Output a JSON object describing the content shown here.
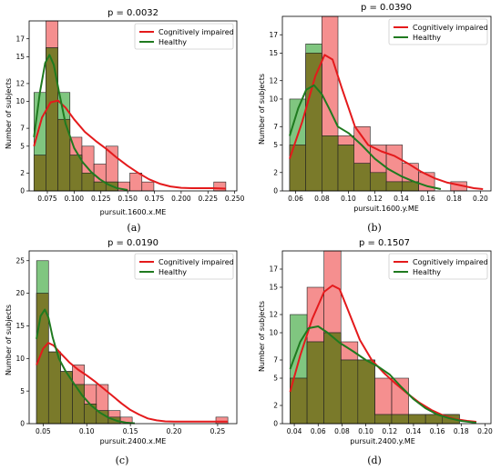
{
  "colors": {
    "impaired_fill": "#ef4444",
    "healthy_fill": "#2ca02c",
    "overlap_fill": "#7a7a2a",
    "impaired_line": "#e41a1c",
    "healthy_line": "#1f7a1f"
  },
  "legend": {
    "impaired": "Cognitively impaired",
    "healthy": "Healthy"
  },
  "chart_data": [
    {
      "type": "histogram",
      "caption": "(a)",
      "title": "p = 0.0032",
      "xlabel": "pursuit.1600.x.ME",
      "ylabel": "Number of subjects",
      "xlim": [
        0.058,
        0.252
      ],
      "ylim": [
        0,
        19
      ],
      "xticks": [
        "0.075",
        "0.100",
        "0.125",
        "0.150",
        "0.175",
        "0.200",
        "0.225",
        "0.250"
      ],
      "xtick_values": [
        0.075,
        0.1,
        0.125,
        0.15,
        0.175,
        0.2,
        0.225,
        0.25
      ],
      "yticks": [
        "0",
        "2",
        "5",
        "7",
        "10",
        "12",
        "15",
        "17"
      ],
      "ytick_values": [
        0,
        2,
        5,
        7,
        10,
        12,
        15,
        17
      ],
      "bin_edges": [
        0.0625,
        0.0737,
        0.0849,
        0.0961,
        0.1073,
        0.1185,
        0.1297,
        0.1409,
        0.1521,
        0.1633,
        0.1745,
        0.1857,
        0.1969,
        0.2081,
        0.2193,
        0.2305,
        0.2417
      ],
      "series": [
        {
          "name": "Cognitively impaired",
          "counts": [
            4,
            19,
            8,
            6,
            5,
            3,
            5,
            1,
            2,
            1,
            0,
            0,
            0,
            0,
            0,
            1
          ],
          "kde_x": [
            0.0625,
            0.07,
            0.078,
            0.085,
            0.092,
            0.1,
            0.11,
            0.12,
            0.13,
            0.14,
            0.15,
            0.16,
            0.17,
            0.18,
            0.19,
            0.2,
            0.21,
            0.22,
            0.23,
            0.2417
          ],
          "kde_y": [
            5.0,
            8.2,
            9.9,
            10.1,
            9.3,
            8.0,
            6.6,
            5.6,
            4.7,
            3.7,
            2.8,
            2.0,
            1.3,
            0.8,
            0.5,
            0.35,
            0.3,
            0.3,
            0.3,
            0.25
          ]
        },
        {
          "name": "Healthy",
          "counts": [
            11,
            16,
            11,
            4,
            2,
            1,
            1,
            0,
            0,
            0,
            0,
            0,
            0,
            0,
            0,
            0
          ],
          "kde_x": [
            0.0625,
            0.068,
            0.073,
            0.077,
            0.081,
            0.086,
            0.092,
            0.1,
            0.108,
            0.116,
            0.124,
            0.132,
            0.14,
            0.15
          ],
          "kde_y": [
            6.0,
            11.0,
            14.3,
            15.2,
            14.1,
            11.0,
            7.5,
            4.8,
            3.2,
            2.1,
            1.3,
            0.7,
            0.3,
            0.1
          ]
        }
      ]
    },
    {
      "type": "histogram",
      "caption": "(b)",
      "title": "p = 0.0390",
      "xlabel": "pursuit.1600.y.ME",
      "ylabel": "Number of subjects",
      "xlim": [
        0.05,
        0.208
      ],
      "ylim": [
        0,
        19
      ],
      "xticks": [
        "0.06",
        "0.08",
        "0.10",
        "0.12",
        "0.14",
        "0.16",
        "0.18",
        "0.20"
      ],
      "xtick_values": [
        0.06,
        0.08,
        0.1,
        0.12,
        0.14,
        0.16,
        0.18,
        0.2
      ],
      "yticks": [
        "0",
        "2",
        "5",
        "7",
        "10",
        "12",
        "15",
        "17"
      ],
      "ytick_values": [
        0,
        2,
        5,
        7,
        10,
        12,
        15,
        17
      ],
      "bin_edges": [
        0.0555,
        0.0677,
        0.0799,
        0.0921,
        0.1043,
        0.1165,
        0.1287,
        0.1409,
        0.1531,
        0.1653,
        0.1775,
        0.1897,
        0.2019
      ],
      "series": [
        {
          "name": "Cognitively impaired",
          "counts": [
            5,
            15,
            19,
            6,
            7,
            5,
            5,
            3,
            2,
            0,
            1,
            0
          ],
          "kde_x": [
            0.0555,
            0.065,
            0.075,
            0.082,
            0.088,
            0.095,
            0.105,
            0.115,
            0.125,
            0.135,
            0.145,
            0.155,
            0.165,
            0.175,
            0.185,
            0.195,
            0.2019
          ],
          "kde_y": [
            3.5,
            7.5,
            12.5,
            14.8,
            14.3,
            11.2,
            7.0,
            5.0,
            4.3,
            3.8,
            3.0,
            2.1,
            1.4,
            0.9,
            0.6,
            0.3,
            0.2
          ]
        },
        {
          "name": "Healthy",
          "counts": [
            10,
            16,
            6,
            5,
            3,
            2,
            1,
            1,
            0,
            0,
            0,
            0
          ],
          "kde_x": [
            0.0555,
            0.062,
            0.068,
            0.074,
            0.08,
            0.086,
            0.092,
            0.1,
            0.11,
            0.12,
            0.13,
            0.14,
            0.15,
            0.16,
            0.17
          ],
          "kde_y": [
            6.0,
            9.0,
            11.0,
            11.5,
            10.5,
            8.8,
            7.0,
            6.3,
            5.0,
            3.5,
            2.4,
            1.6,
            1.0,
            0.5,
            0.2
          ]
        }
      ]
    },
    {
      "type": "histogram",
      "caption": "(c)",
      "title": "p = 0.0190",
      "xlabel": "pursuit.2400.x.ME",
      "ylabel": "Number of subjects",
      "xlim": [
        0.034,
        0.272
      ],
      "ylim": [
        0,
        26.5
      ],
      "xticks": [
        "0.05",
        "0.10",
        "0.15",
        "0.20",
        "0.25"
      ],
      "xtick_values": [
        0.05,
        0.1,
        0.15,
        0.2,
        0.25
      ],
      "yticks": [
        "0",
        "5",
        "10",
        "15",
        "20",
        "25"
      ],
      "ytick_values": [
        0,
        5,
        10,
        15,
        20,
        25
      ],
      "bin_edges": [
        0.0425,
        0.0562,
        0.0699,
        0.0836,
        0.0973,
        0.111,
        0.1247,
        0.1384,
        0.1521,
        0.1658,
        0.1795,
        0.1932,
        0.2069,
        0.2206,
        0.2343,
        0.248,
        0.2617
      ],
      "series": [
        {
          "name": "Cognitively impaired",
          "counts": [
            20,
            11,
            8,
            9,
            6,
            6,
            2,
            1,
            0,
            0,
            0,
            0,
            0,
            0,
            0,
            1
          ],
          "kde_x": [
            0.0425,
            0.05,
            0.056,
            0.062,
            0.07,
            0.08,
            0.09,
            0.1,
            0.11,
            0.12,
            0.13,
            0.14,
            0.15,
            0.16,
            0.17,
            0.18,
            0.19,
            0.2,
            0.22,
            0.24,
            0.2617
          ],
          "kde_y": [
            9.0,
            11.5,
            12.4,
            12.0,
            10.8,
            9.4,
            8.3,
            7.4,
            6.4,
            5.3,
            4.2,
            3.1,
            2.1,
            1.4,
            0.8,
            0.5,
            0.35,
            0.3,
            0.3,
            0.3,
            0.3
          ]
        },
        {
          "name": "Healthy",
          "counts": [
            25,
            11,
            8,
            6,
            3,
            2,
            1,
            0,
            0,
            0,
            0,
            0,
            0,
            0,
            0,
            0
          ],
          "kde_x": [
            0.0425,
            0.047,
            0.052,
            0.056,
            0.061,
            0.068,
            0.076,
            0.085,
            0.095,
            0.105,
            0.115,
            0.125,
            0.135,
            0.145,
            0.155
          ],
          "kde_y": [
            13.0,
            16.5,
            17.5,
            16.3,
            13.2,
            10.0,
            8.0,
            6.2,
            4.3,
            2.8,
            1.7,
            0.9,
            0.4,
            0.15,
            0.05
          ]
        }
      ]
    },
    {
      "type": "histogram",
      "caption": "(d)",
      "title": "p = 0.1507",
      "xlabel": "pursuit.2400.y.ME",
      "ylabel": "Number of subjects",
      "xlim": [
        0.03,
        0.205
      ],
      "ylim": [
        0,
        19
      ],
      "xticks": [
        "0.04",
        "0.06",
        "0.08",
        "0.10",
        "0.12",
        "0.14",
        "0.16",
        "0.18",
        "0.20"
      ],
      "xtick_values": [
        0.04,
        0.06,
        0.08,
        0.1,
        0.12,
        0.14,
        0.16,
        0.18,
        0.2
      ],
      "yticks": [
        "0",
        "2",
        "5",
        "7",
        "10",
        "12",
        "15",
        "17"
      ],
      "ytick_values": [
        0,
        2,
        5,
        7,
        10,
        12,
        15,
        17
      ],
      "bin_edges": [
        0.0365,
        0.0507,
        0.0649,
        0.0791,
        0.0933,
        0.1075,
        0.1217,
        0.1359,
        0.1501,
        0.1643,
        0.1785,
        0.1927
      ],
      "series": [
        {
          "name": "Cognitively impaired",
          "counts": [
            5,
            15,
            19,
            9,
            7,
            5,
            5,
            1,
            1,
            1,
            0
          ],
          "kde_x": [
            0.0365,
            0.045,
            0.055,
            0.065,
            0.072,
            0.078,
            0.085,
            0.095,
            0.105,
            0.115,
            0.125,
            0.135,
            0.145,
            0.155,
            0.165,
            0.175,
            0.185,
            0.1927
          ],
          "kde_y": [
            3.5,
            7.5,
            11.5,
            14.5,
            15.2,
            14.8,
            12.5,
            9.2,
            7.0,
            5.6,
            4.4,
            3.3,
            2.3,
            1.5,
            0.9,
            0.5,
            0.3,
            0.2
          ]
        },
        {
          "name": "Healthy",
          "counts": [
            12,
            9,
            10,
            7,
            7,
            1,
            1,
            1,
            1,
            1,
            0
          ],
          "kde_x": [
            0.0365,
            0.045,
            0.052,
            0.06,
            0.068,
            0.078,
            0.09,
            0.1,
            0.11,
            0.12,
            0.13,
            0.14,
            0.15,
            0.16,
            0.17,
            0.18,
            0.1927
          ],
          "kde_y": [
            6.0,
            9.0,
            10.5,
            10.7,
            10.0,
            8.9,
            7.9,
            7.0,
            6.3,
            5.4,
            4.0,
            2.7,
            1.7,
            1.0,
            0.6,
            0.3,
            0.1
          ]
        }
      ]
    }
  ]
}
